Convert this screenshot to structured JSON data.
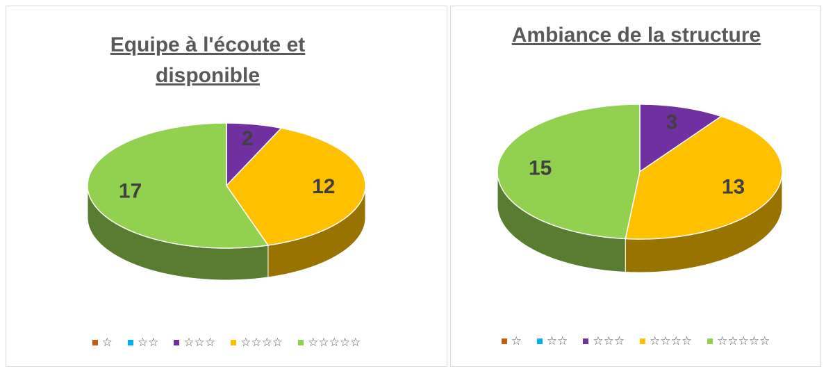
{
  "chart_data": [
    {
      "type": "pie",
      "title": "Equipe à l'écoute et disponible",
      "categories": [
        "☆",
        "☆☆",
        "☆☆☆",
        "☆☆☆☆",
        "☆☆☆☆☆"
      ],
      "values": [
        0,
        0,
        2,
        12,
        17
      ],
      "colors": [
        "#c55a11",
        "#00b0f0",
        "#7030a0",
        "#ffc000",
        "#92d050"
      ],
      "legend": "bottom"
    },
    {
      "type": "pie",
      "title": "Ambiance de la structure",
      "categories": [
        "☆",
        "☆☆",
        "☆☆☆",
        "☆☆☆☆",
        "☆☆☆☆☆"
      ],
      "values": [
        0,
        0,
        3,
        13,
        15
      ],
      "colors": [
        "#c55a11",
        "#00b0f0",
        "#7030a0",
        "#ffc000",
        "#92d050"
      ],
      "legend": "bottom"
    }
  ]
}
